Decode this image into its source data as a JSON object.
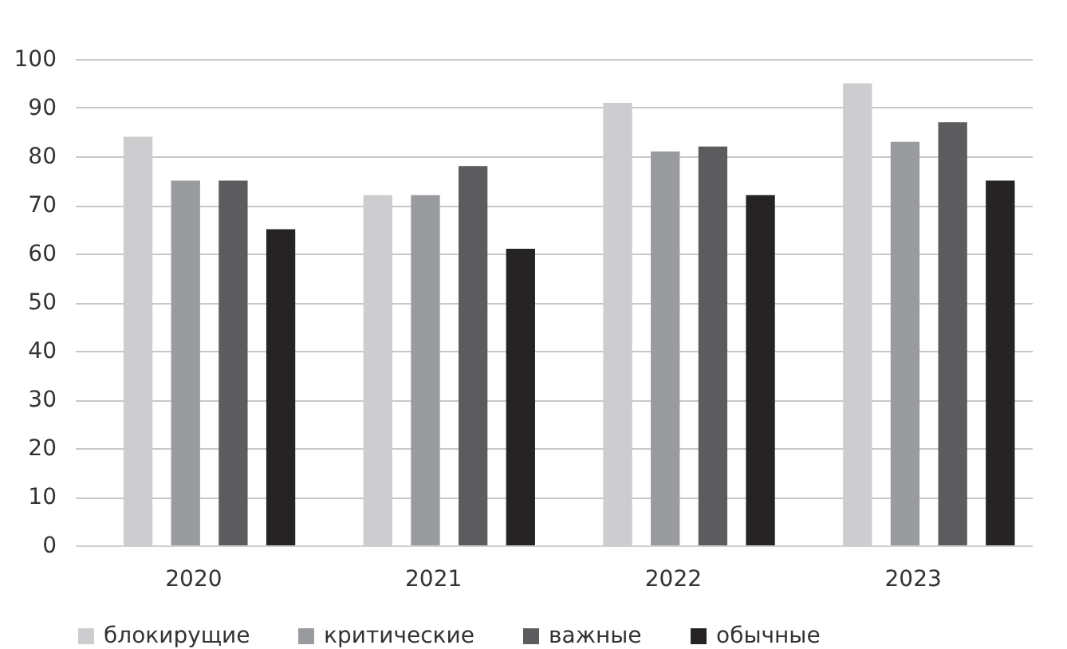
{
  "chart_data": {
    "type": "bar",
    "categories": [
      "2020",
      "2021",
      "2022",
      "2023"
    ],
    "series": [
      {
        "name": "блокирущие",
        "color": "#cdcdd0",
        "values": [
          84,
          72,
          91,
          95
        ]
      },
      {
        "name": "критические",
        "color": "#9a9b9e",
        "values": [
          75,
          72,
          81,
          83
        ]
      },
      {
        "name": "важные",
        "color": "#5c5c5e",
        "values": [
          75,
          78,
          82,
          87
        ]
      },
      {
        "name": "обычные",
        "color": "#252324",
        "values": [
          65,
          61,
          72,
          75
        ]
      }
    ],
    "ylim": [
      0,
      100
    ],
    "yticks": [
      0,
      10,
      20,
      30,
      40,
      50,
      60,
      70,
      80,
      90,
      100
    ],
    "grid": "y",
    "legend": "bottom"
  }
}
